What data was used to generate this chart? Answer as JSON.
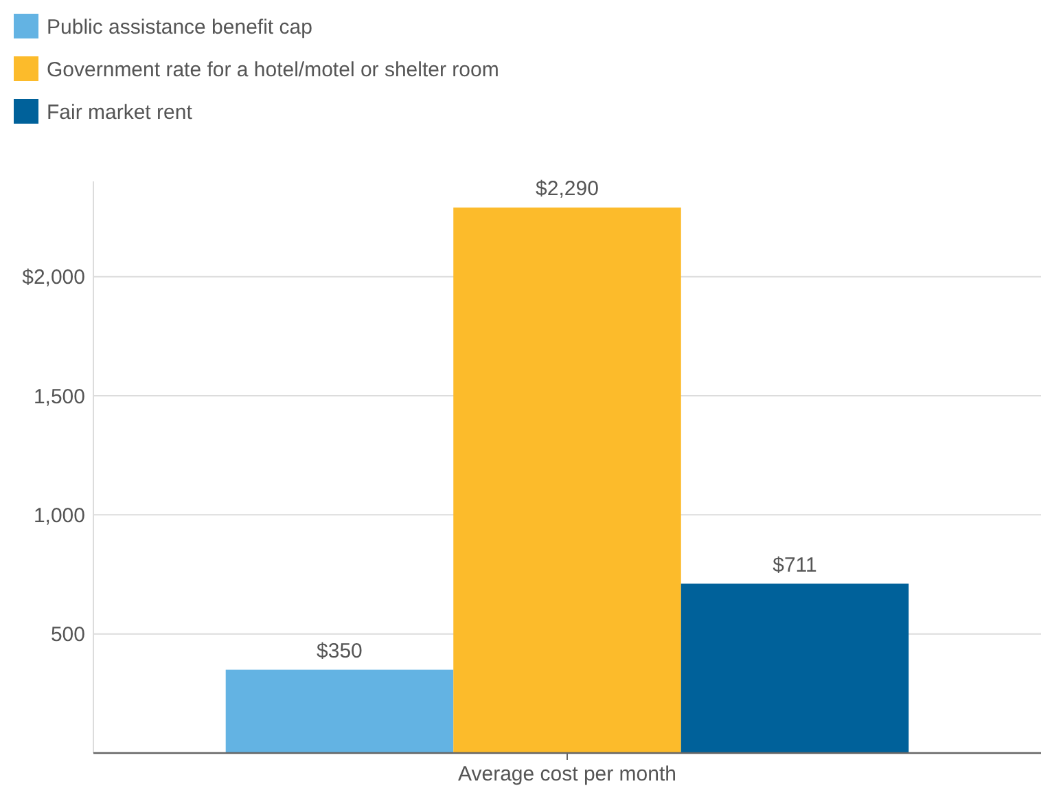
{
  "chart_data": {
    "type": "bar",
    "categories": [
      "Average cost per month"
    ],
    "series": [
      {
        "name": "Public assistance benefit cap",
        "color": "#63b3e3",
        "values": [
          350
        ],
        "value_labels": [
          "$350"
        ]
      },
      {
        "name": "Government rate for a hotel/motel or shelter room",
        "color": "#fcbb2b",
        "values": [
          2290
        ],
        "value_labels": [
          "$2,290"
        ]
      },
      {
        "name": "Fair market rent",
        "color": "#00619a",
        "values": [
          711
        ],
        "value_labels": [
          "$711"
        ]
      }
    ],
    "ylim": [
      0,
      2400
    ],
    "yticks": [
      {
        "value": 500,
        "label": "500"
      },
      {
        "value": 1000,
        "label": "1,000"
      },
      {
        "value": 1500,
        "label": "1,500"
      },
      {
        "value": 2000,
        "label": "$2,000"
      }
    ],
    "grid": "y",
    "legend": "top left"
  }
}
